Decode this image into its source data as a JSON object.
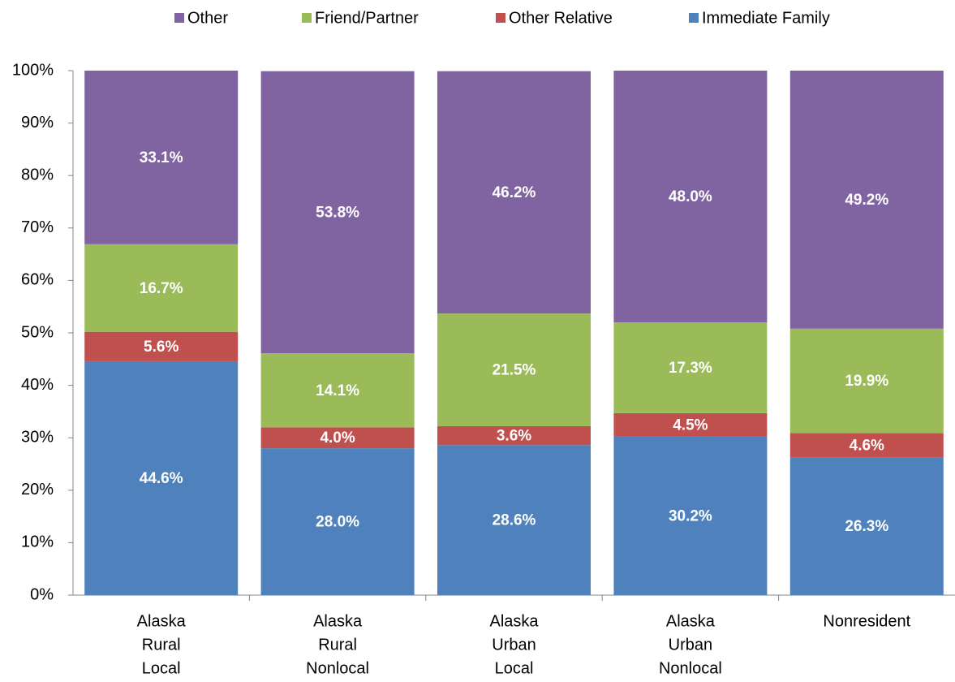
{
  "chart_data": {
    "type": "stacked_bar",
    "categories": [
      [
        "Alaska",
        "Rural",
        "Local"
      ],
      [
        "Alaska",
        "Rural",
        "Nonlocal"
      ],
      [
        "Alaska",
        "Urban",
        "Local"
      ],
      [
        "Alaska",
        "Urban",
        "Nonlocal"
      ],
      [
        "Nonresident"
      ]
    ],
    "series": [
      {
        "name": "Immediate Family",
        "color": "#4f81bd",
        "values": [
          44.6,
          28.0,
          28.6,
          30.2,
          26.3
        ],
        "value_labels": [
          "44.6%",
          "28.0%",
          "28.6%",
          "30.2%",
          "26.3%"
        ]
      },
      {
        "name": "Other Relative",
        "color": "#c0504d",
        "values": [
          5.6,
          4.0,
          3.6,
          4.5,
          4.6
        ],
        "value_labels": [
          "5.6%",
          "4.0%",
          "3.6%",
          "4.5%",
          "4.6%"
        ]
      },
      {
        "name": "Friend/Partner",
        "color": "#9bbb59",
        "values": [
          16.7,
          14.1,
          21.5,
          17.3,
          19.9
        ],
        "value_labels": [
          "16.7%",
          "14.1%",
          "21.5%",
          "17.3%",
          "19.9%"
        ]
      },
      {
        "name": "Other",
        "color": "#8064a2",
        "values": [
          33.1,
          53.8,
          46.2,
          48.0,
          49.2
        ],
        "value_labels": [
          "33.1%",
          "53.8%",
          "46.2%",
          "48.0%",
          "49.2%"
        ]
      }
    ],
    "ylim": [
      0,
      100
    ],
    "yticks": [
      {
        "value": 0,
        "label": "0%"
      },
      {
        "value": 10,
        "label": "10%"
      },
      {
        "value": 20,
        "label": "20%"
      },
      {
        "value": 30,
        "label": "30%"
      },
      {
        "value": 40,
        "label": "40%"
      },
      {
        "value": 50,
        "label": "50%"
      },
      {
        "value": 60,
        "label": "60%"
      },
      {
        "value": 70,
        "label": "70%"
      },
      {
        "value": 80,
        "label": "80%"
      },
      {
        "value": 90,
        "label": "90%"
      },
      {
        "value": 100,
        "label": "100%"
      }
    ],
    "legend": "top",
    "grid": false
  }
}
